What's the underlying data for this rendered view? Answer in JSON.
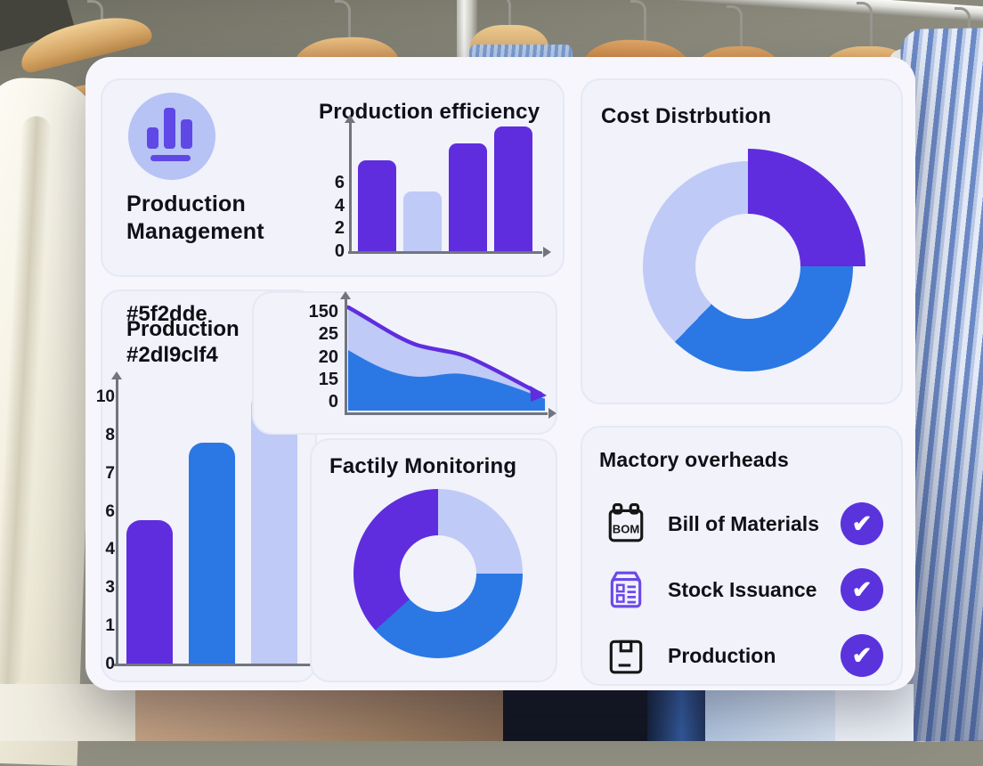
{
  "colors": {
    "purple": "#5f2dde",
    "blue": "#2b78e4",
    "light": "#bfcaf7",
    "badge_purple": "#5a33dd",
    "icon_circle": "#b7c3f5",
    "axis": "#72757d",
    "card_bg": "#f1f2fa",
    "panel_bg": "#f6f6fc"
  },
  "check_glyph": "✔",
  "cards": {
    "production_management": {
      "title": "Production Management"
    },
    "efficiency": {
      "title": "Production efficiency"
    },
    "cost": {
      "title": "Cost Distrbution"
    },
    "hex": {
      "line1": "#5f2dde",
      "line2": "Production",
      "line3": "#2dl9clf4"
    },
    "factily": {
      "title": "Factily Monitoring"
    },
    "mactory": {
      "title": "Mactory overheads",
      "items": [
        {
          "label": "Bill of Materials",
          "icon": "bom-document-icon",
          "icon_text": "BOM",
          "checked": true
        },
        {
          "label": "Stock Issuance",
          "icon": "stock-issuance-form-icon",
          "checked": true
        },
        {
          "label": "Production",
          "icon": "production-package-icon",
          "checked": true
        }
      ]
    }
  },
  "chart_data": [
    {
      "id": "production_efficiency",
      "type": "bar",
      "title": "Production efficiency",
      "y_ticks": [
        6,
        4,
        2,
        0
      ],
      "values": [
        6.6,
        4.3,
        7.8,
        9.0
      ],
      "bar_colors": [
        "purple",
        "light",
        "purple",
        "purple"
      ],
      "ylim": [
        0,
        9.4
      ],
      "grid": false,
      "legend": "none"
    },
    {
      "id": "cost_distribution",
      "type": "pie",
      "title": "Cost Distrbution",
      "style": "donut",
      "slices": [
        {
          "name": "slice-purple",
          "color": "purple",
          "start_deg": 0,
          "end_deg": 90,
          "percent": 25,
          "emphasized": true
        },
        {
          "name": "slice-blue",
          "color": "blue",
          "start_deg": 90,
          "end_deg": 224,
          "percent": 37
        },
        {
          "name": "slice-light",
          "color": "light",
          "start_deg": 224,
          "end_deg": 360,
          "percent": 38
        }
      ]
    },
    {
      "id": "hex_production_bar",
      "type": "bar",
      "title": "#5f2dde Production #2dl9clf4",
      "y_ticks": [
        10,
        8,
        7,
        6,
        4,
        3,
        1,
        0
      ],
      "values": [
        5.3,
        8.2,
        10.1
      ],
      "bar_colors": [
        "purple",
        "blue",
        "light"
      ],
      "ylim": [
        0,
        10.3
      ],
      "grid": false,
      "legend": "none"
    },
    {
      "id": "trend_area",
      "type": "area",
      "title": "",
      "y_ticks": [
        150,
        25,
        20,
        15,
        0
      ],
      "x": [
        0,
        1,
        2,
        3,
        4
      ],
      "series": [
        {
          "name": "upper-band",
          "fill_color": "light",
          "line_color": "purple",
          "values": [
            150,
            28,
            25,
            18,
            3
          ]
        },
        {
          "name": "lower-band",
          "fill_color": "blue",
          "values": [
            20,
            12,
            13,
            9,
            2
          ]
        }
      ],
      "trend": "decreasing",
      "grid": false
    },
    {
      "id": "factily_monitoring",
      "type": "pie",
      "title": "Factily Monitoring",
      "style": "donut",
      "slices": [
        {
          "name": "slice-light",
          "color": "light",
          "start_deg": 0,
          "end_deg": 90,
          "percent": 25
        },
        {
          "name": "slice-blue",
          "color": "blue",
          "start_deg": 90,
          "end_deg": 228,
          "percent": 38
        },
        {
          "name": "slice-purple",
          "color": "purple",
          "start_deg": 228,
          "end_deg": 360,
          "percent": 37
        }
      ]
    }
  ]
}
